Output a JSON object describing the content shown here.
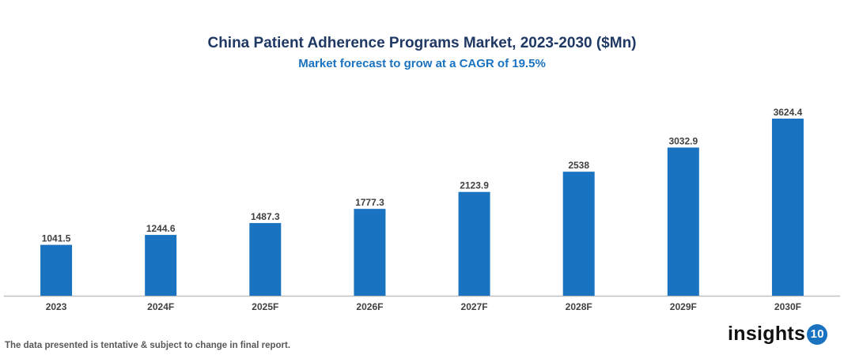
{
  "chart_data": {
    "type": "bar",
    "title": "China Patient Adherence Programs Market, 2023-2030 ($Mn)",
    "subtitle": "Market forecast to grow at a CAGR of 19.5%",
    "categories": [
      "2023",
      "2024F",
      "2025F",
      "2026F",
      "2027F",
      "2028F",
      "2029F",
      "2030F"
    ],
    "values": [
      1041.5,
      1244.6,
      1487.3,
      1777.3,
      2123.9,
      2538,
      3032.9,
      3624.4
    ],
    "value_labels": [
      "1041.5",
      "1244.6",
      "1487.3",
      "1777.3",
      "2123.9",
      "2538",
      "3032.9",
      "3624.4"
    ],
    "xlabel": "",
    "ylabel": "",
    "ylim": [
      0,
      3624.4
    ],
    "grid": false,
    "bar_color": "#1a73c0",
    "axis_color": "#bfbfbf"
  },
  "footer": {
    "note": "The data presented is tentative & subject to change in final report.",
    "logo_text": "insights",
    "logo_number": "10"
  }
}
